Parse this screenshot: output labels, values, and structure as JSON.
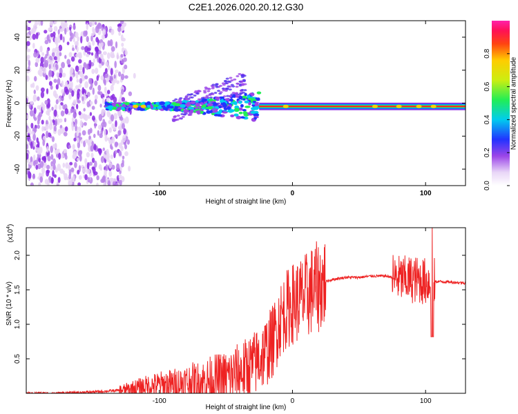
{
  "chart_data": [
    {
      "type": "heatmap",
      "title": "C2E1.2026.020.20.12.G30",
      "xlabel": "Height of straight line (km)",
      "ylabel": "Frequency (Hz)",
      "xlim": [
        -200,
        130
      ],
      "ylim": [
        -50,
        50
      ],
      "x_ticks": [
        -100,
        0,
        100
      ],
      "y_ticks": [
        -40,
        -20,
        0,
        20,
        40
      ],
      "colorbar": {
        "label": "Normalized spectral amplitude",
        "range": [
          0.0,
          1.0
        ],
        "ticks": [
          "0.0",
          "0.2",
          "0.4",
          "0.6",
          "0.8"
        ],
        "tick_values": [
          0.0,
          0.2,
          0.4,
          0.6,
          0.8
        ]
      },
      "features": [
        {
          "name": "diffuse noise",
          "x_range": [
            -200,
            -125
          ],
          "y_range": [
            -50,
            50
          ],
          "amplitude": 0.1
        },
        {
          "name": "broken band",
          "x_range": [
            -140,
            -25
          ],
          "y_center": -2,
          "amplitude": 0.5
        },
        {
          "name": "rising streak",
          "x_range": [
            -90,
            -35
          ],
          "y_start": 0,
          "y_end": 18,
          "amplitude": 0.15
        },
        {
          "name": "carrier line",
          "x_range": [
            -25,
            130
          ],
          "y_center": -2,
          "amplitude": 0.95
        }
      ]
    },
    {
      "type": "line",
      "xlabel": "Height of straight line (km)",
      "ylabel": "SNR (10 * v/v)",
      "y_multiplier": "(x10",
      "y_multiplier_exp": "4",
      "y_multiplier_close": ")",
      "xlim": [
        -200,
        130
      ],
      "ylim": [
        0,
        2.4
      ],
      "x_ticks": [
        -100,
        0,
        100
      ],
      "y_ticks": [
        "0.5",
        "1.0",
        "1.5",
        "2.0"
      ],
      "y_tick_values": [
        0.5,
        1.0,
        1.5,
        2.0
      ],
      "color": "#ee2222",
      "series": [
        {
          "name": "SNR",
          "x": [
            -200,
            -180,
            -160,
            -140,
            -125,
            -110,
            -100,
            -90,
            -80,
            -70,
            -60,
            -50,
            -40,
            -30,
            -25,
            -20,
            -15,
            -12,
            -10,
            -5,
            0,
            5,
            10,
            15,
            20,
            25,
            30,
            40,
            50,
            60,
            70,
            75,
            80,
            85,
            90,
            95,
            100,
            105,
            110,
            120,
            130
          ],
          "values": [
            0.0,
            0.0,
            0.01,
            0.03,
            0.05,
            0.1,
            0.12,
            0.12,
            0.15,
            0.15,
            0.2,
            0.22,
            0.3,
            0.4,
            0.5,
            0.6,
            0.75,
            0.9,
            1.05,
            1.2,
            1.3,
            1.35,
            1.4,
            1.5,
            1.55,
            1.62,
            1.65,
            1.68,
            1.68,
            1.7,
            1.7,
            1.68,
            1.66,
            1.65,
            1.65,
            1.64,
            1.62,
            1.62,
            1.62,
            1.61,
            1.6
          ]
        }
      ]
    }
  ]
}
